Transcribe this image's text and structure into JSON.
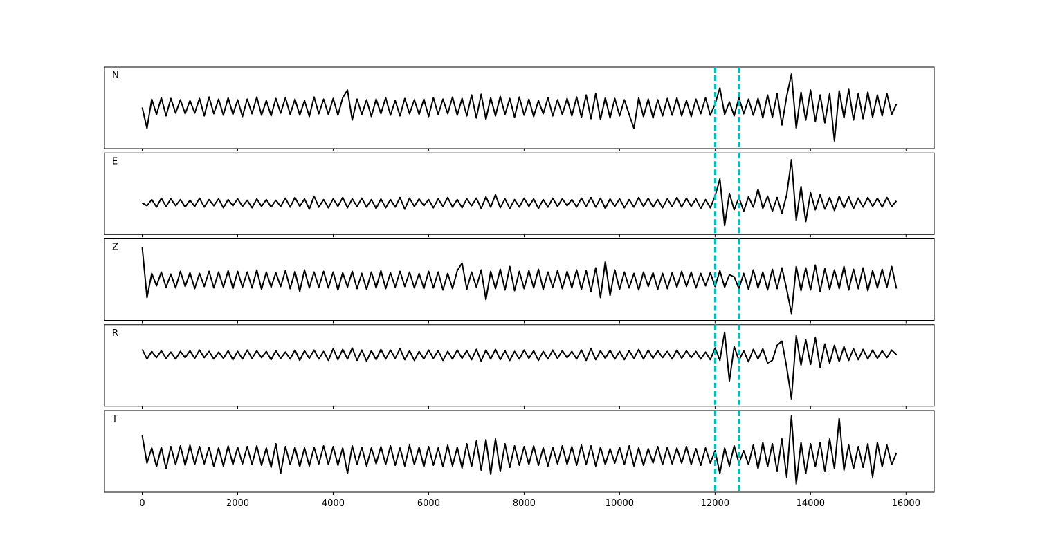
{
  "chart_data": {
    "type": "line",
    "x": [
      0,
      100,
      200,
      300,
      400,
      500,
      600,
      700,
      800,
      900,
      1000,
      1100,
      1200,
      1300,
      1400,
      1500,
      1600,
      1700,
      1800,
      1900,
      2000,
      2100,
      2200,
      2300,
      2400,
      2500,
      2600,
      2700,
      2800,
      2900,
      3000,
      3100,
      3200,
      3300,
      3400,
      3500,
      3600,
      3700,
      3800,
      3900,
      4000,
      4100,
      4200,
      4300,
      4400,
      4500,
      4600,
      4700,
      4800,
      4900,
      5000,
      5100,
      5200,
      5300,
      5400,
      5500,
      5600,
      5700,
      5800,
      5900,
      6000,
      6100,
      6200,
      6300,
      6400,
      6500,
      6600,
      6700,
      6800,
      6900,
      7000,
      7100,
      7200,
      7300,
      7400,
      7500,
      7600,
      7700,
      7800,
      7900,
      8000,
      8100,
      8200,
      8300,
      8400,
      8500,
      8600,
      8700,
      8800,
      8900,
      9000,
      9100,
      9200,
      9300,
      9400,
      9500,
      9600,
      9700,
      9800,
      9900,
      10000,
      10100,
      10200,
      10300,
      10400,
      10500,
      10600,
      10700,
      10800,
      10900,
      11000,
      11100,
      11200,
      11300,
      11400,
      11500,
      11600,
      11700,
      11800,
      11900,
      12000,
      12100,
      12200,
      12300,
      12400,
      12500,
      12600,
      12700,
      12800,
      12900,
      13000,
      13100,
      13200,
      13300,
      13400,
      13500,
      13600,
      13700,
      13800,
      13900,
      14000,
      14100,
      14200,
      14300,
      14400,
      14500,
      14600,
      14700,
      14800,
      14900,
      15000,
      15100,
      15200,
      15300,
      15400,
      15500,
      15600,
      15700,
      15800
    ],
    "xlim": [
      -790,
      16590
    ],
    "xticks": [
      0,
      2000,
      4000,
      6000,
      8000,
      10000,
      12000,
      14000,
      16000
    ],
    "vlines": [
      12000,
      12500
    ],
    "vline_color": "#00bfbf",
    "series": [
      {
        "name": "N",
        "color": "#000000",
        "ylim": [
          -59,
          58
        ],
        "values": [
          0,
          -30,
          12,
          -10,
          14,
          -12,
          13,
          -8,
          11,
          -9,
          10,
          -8,
          13,
          -12,
          15,
          -9,
          12,
          -11,
          14,
          -10,
          11,
          -13,
          12,
          -9,
          15,
          -11,
          10,
          -12,
          13,
          -8,
          14,
          -10,
          12,
          -11,
          10,
          -13,
          15,
          -9,
          12,
          -10,
          13,
          -11,
          14,
          25,
          -18,
          12,
          -10,
          11,
          -13,
          12,
          -9,
          14,
          -11,
          10,
          -12,
          13,
          -9,
          11,
          -10,
          12,
          -13,
          14,
          -10,
          12,
          -9,
          15,
          -11,
          13,
          -12,
          18,
          -15,
          19,
          -17,
          14,
          -12,
          16,
          -10,
          13,
          -14,
          15,
          -11,
          12,
          -13,
          10,
          -9,
          14,
          -12,
          11,
          -10,
          13,
          -12,
          15,
          -14,
          18,
          -16,
          20,
          -17,
          14,
          -15,
          13,
          -12,
          11,
          -10,
          -30,
          14,
          -13,
          12,
          -15,
          11,
          -12,
          13,
          -11,
          14,
          -12,
          10,
          -13,
          12,
          -9,
          14,
          -11,
          5,
          28,
          -10,
          8,
          -12,
          14,
          -9,
          12,
          -11,
          13,
          -15,
          18,
          -14,
          20,
          -25,
          16,
          48,
          -30,
          22,
          -18,
          25,
          -20,
          18,
          -22,
          20,
          -48,
          24,
          -15,
          26,
          -18,
          20,
          -16,
          22,
          -14,
          18,
          -12,
          20,
          -10,
          5
        ]
      },
      {
        "name": "E",
        "color": "#000000",
        "ylim": [
          -46,
          73
        ],
        "values": [
          0,
          -4,
          5,
          -6,
          7,
          -5,
          6,
          -4,
          5,
          -6,
          4,
          -5,
          7,
          -6,
          5,
          -4,
          6,
          -7,
          5,
          -4,
          6,
          -5,
          4,
          -7,
          6,
          -5,
          5,
          -6,
          4,
          -5,
          7,
          -6,
          8,
          -5,
          6,
          -9,
          10,
          -6,
          5,
          -7,
          6,
          -5,
          8,
          -7,
          6,
          -5,
          7,
          -6,
          5,
          -8,
          6,
          -7,
          5,
          -6,
          8,
          -9,
          7,
          -5,
          6,
          -4,
          5,
          -7,
          6,
          -5,
          8,
          -6,
          5,
          -7,
          6,
          -4,
          7,
          -8,
          9,
          -6,
          12,
          -7,
          6,
          -8,
          5,
          -6,
          7,
          -5,
          6,
          -8,
          5,
          -6,
          7,
          -5,
          6,
          -4,
          5,
          -6,
          7,
          -5,
          8,
          -6,
          7,
          -8,
          6,
          -5,
          6,
          -7,
          5,
          -6,
          8,
          -5,
          7,
          -6,
          5,
          -7,
          6,
          -5,
          8,
          -6,
          7,
          -5,
          6,
          -8,
          5,
          -7,
          10,
          35,
          -33,
          14,
          -10,
          8,
          -12,
          9,
          -6,
          20,
          -8,
          10,
          -12,
          8,
          -15,
          12,
          63,
          -25,
          24,
          -27,
          15,
          -10,
          12,
          -9,
          8,
          -11,
          10,
          -7,
          9,
          -8,
          7,
          -6,
          8,
          -5,
          7,
          -6,
          8,
          -5,
          3
        ]
      },
      {
        "name": "Z",
        "color": "#000000",
        "ylim": [
          -58,
          60
        ],
        "values": [
          48,
          -25,
          10,
          -8,
          12,
          -10,
          9,
          -11,
          13,
          -9,
          11,
          -12,
          10,
          -9,
          13,
          -11,
          12,
          -10,
          14,
          -12,
          13,
          -10,
          12,
          -11,
          15,
          -13,
          12,
          -10,
          11,
          -9,
          14,
          -12,
          13,
          -16,
          15,
          -11,
          12,
          -10,
          13,
          -11,
          12,
          -14,
          11,
          -10,
          13,
          -12,
          10,
          -13,
          12,
          -11,
          14,
          -12,
          11,
          -10,
          13,
          -9,
          12,
          -11,
          10,
          -12,
          13,
          -11,
          12,
          -14,
          10,
          -12,
          14,
          25,
          -13,
          12,
          -10,
          15,
          -28,
          13,
          -12,
          16,
          -14,
          20,
          -15,
          13,
          -12,
          14,
          -11,
          16,
          -13,
          12,
          -10,
          14,
          -12,
          13,
          -11,
          15,
          -13,
          14,
          -16,
          18,
          -25,
          27,
          -22,
          15,
          -13,
          12,
          -11,
          10,
          -14,
          12,
          -9,
          11,
          -13,
          10,
          -12,
          11,
          -10,
          13,
          -9,
          12,
          -11,
          10,
          -8,
          11,
          -9,
          14,
          -10,
          8,
          5,
          -12,
          10,
          -13,
          15,
          -11,
          12,
          -14,
          16,
          -12,
          18,
          -13,
          -48,
          20,
          -15,
          18,
          -14,
          22,
          -16,
          17,
          -13,
          15,
          -12,
          20,
          -14,
          16,
          -12,
          18,
          -15,
          14,
          -11,
          16,
          -10,
          20,
          -12
        ]
      },
      {
        "name": "R",
        "color": "#000000",
        "ylim": [
          -75,
          44
        ],
        "values": [
          8,
          -6,
          5,
          -4,
          6,
          -5,
          4,
          -6,
          5,
          -4,
          6,
          -5,
          7,
          -4,
          5,
          -6,
          4,
          -5,
          6,
          -7,
          5,
          -6,
          7,
          -5,
          6,
          -4,
          5,
          -7,
          6,
          -5,
          4,
          -6,
          7,
          -8,
          6,
          -5,
          7,
          -6,
          5,
          -8,
          9,
          -7,
          8,
          -6,
          10,
          -8,
          7,
          -9,
          6,
          -7,
          8,
          -6,
          7,
          -5,
          9,
          -7,
          6,
          -8,
          5,
          -6,
          7,
          -5,
          6,
          -8,
          5,
          -6,
          7,
          -5,
          6,
          -7,
          8,
          -9,
          7,
          -6,
          8,
          -7,
          6,
          -8,
          5,
          -6,
          7,
          -5,
          6,
          -8,
          5,
          -6,
          7,
          -5,
          6,
          -4,
          5,
          -6,
          7,
          -8,
          9,
          -7,
          6,
          -5,
          7,
          -6,
          5,
          -7,
          6,
          -5,
          8,
          -6,
          7,
          -5,
          6,
          -4,
          5,
          -6,
          7,
          -5,
          6,
          -4,
          5,
          -6,
          4,
          -7,
          10,
          -8,
          33,
          -38,
          12,
          -8,
          6,
          -10,
          8,
          -6,
          9,
          -12,
          -8,
          14,
          20,
          -18,
          -64,
          28,
          -15,
          22,
          -14,
          25,
          -18,
          16,
          -12,
          14,
          -10,
          12,
          -8,
          9,
          -7,
          8,
          -6,
          7,
          -5,
          6,
          -4,
          7,
          0
        ]
      },
      {
        "name": "T",
        "color": "#000000",
        "ylim": [
          -52,
          66
        ],
        "values": [
          30,
          -10,
          12,
          -15,
          13,
          -18,
          14,
          -12,
          15,
          -13,
          16,
          -12,
          14,
          -11,
          13,
          -15,
          12,
          -14,
          15,
          -12,
          13,
          -11,
          14,
          -12,
          15,
          -13,
          12,
          -16,
          18,
          -25,
          14,
          -12,
          13,
          -15,
          12,
          -14,
          13,
          -11,
          15,
          -12,
          14,
          -13,
          12,
          -25,
          15,
          -12,
          13,
          -14,
          12,
          -11,
          14,
          -12,
          15,
          -13,
          12,
          -14,
          16,
          -12,
          13,
          -15,
          14,
          -13,
          12,
          -15,
          16,
          -14,
          13,
          -17,
          18,
          -15,
          22,
          -20,
          24,
          -26,
          25,
          -22,
          18,
          -16,
          15,
          -13,
          14,
          -12,
          15,
          -13,
          12,
          -14,
          13,
          -11,
          15,
          -12,
          14,
          -13,
          16,
          -12,
          15,
          -14,
          13,
          -12,
          11,
          -10,
          13,
          -12,
          15,
          -14,
          12,
          -13,
          11,
          -10,
          14,
          -12,
          13,
          -11,
          12,
          -10,
          14,
          -12,
          11,
          -13,
          12,
          -10,
          8,
          -25,
          12,
          -14,
          15,
          -10,
          8,
          -12,
          16,
          -18,
          20,
          -15,
          18,
          -22,
          25,
          -30,
          58,
          -40,
          20,
          -25,
          18,
          -15,
          20,
          -22,
          25,
          -18,
          55,
          -20,
          16,
          -18,
          14,
          -16,
          18,
          -30,
          20,
          -15,
          16,
          -12,
          5
        ]
      }
    ]
  }
}
